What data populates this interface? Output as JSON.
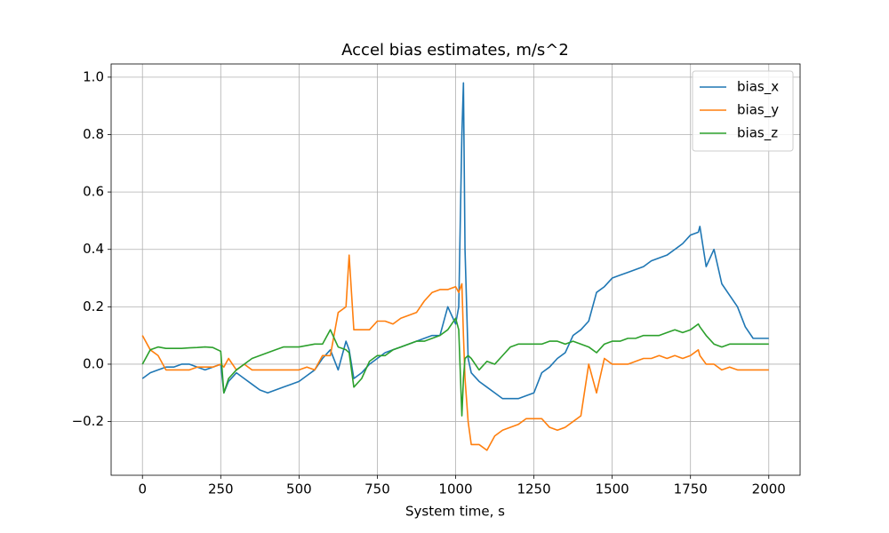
{
  "chart_data": {
    "type": "line",
    "title": "Accel bias estimates, m/s^2",
    "x_label": "System time, s",
    "x": [
      0,
      25,
      50,
      75,
      100,
      125,
      150,
      175,
      200,
      225,
      250,
      260,
      275,
      300,
      325,
      350,
      375,
      400,
      425,
      450,
      475,
      500,
      525,
      550,
      575,
      600,
      625,
      650,
      660,
      675,
      700,
      725,
      750,
      775,
      800,
      825,
      850,
      875,
      900,
      925,
      950,
      975,
      1000,
      1010,
      1020,
      1025,
      1030,
      1040,
      1050,
      1075,
      1100,
      1125,
      1150,
      1175,
      1200,
      1225,
      1250,
      1275,
      1300,
      1325,
      1350,
      1375,
      1400,
      1425,
      1450,
      1475,
      1500,
      1525,
      1550,
      1575,
      1600,
      1625,
      1650,
      1675,
      1700,
      1725,
      1750,
      1775,
      1780,
      1800,
      1825,
      1850,
      1875,
      1900,
      1925,
      1950,
      1975,
      2000
    ],
    "series": [
      {
        "name": "bias_x",
        "color": "#1f77b4",
        "values": [
          -0.05,
          -0.03,
          -0.02,
          -0.01,
          -0.01,
          0.0,
          0.0,
          -0.01,
          -0.02,
          -0.01,
          0.0,
          -0.1,
          -0.06,
          -0.03,
          -0.05,
          -0.07,
          -0.09,
          -0.1,
          -0.09,
          -0.08,
          -0.07,
          -0.06,
          -0.04,
          -0.02,
          0.02,
          0.05,
          -0.02,
          0.08,
          0.05,
          -0.05,
          -0.03,
          0.0,
          0.02,
          0.04,
          0.05,
          0.06,
          0.07,
          0.08,
          0.09,
          0.1,
          0.1,
          0.2,
          0.14,
          0.2,
          0.8,
          0.98,
          0.4,
          0.02,
          -0.03,
          -0.06,
          -0.08,
          -0.1,
          -0.12,
          -0.12,
          -0.12,
          -0.11,
          -0.1,
          -0.03,
          -0.01,
          0.02,
          0.04,
          0.1,
          0.12,
          0.15,
          0.25,
          0.27,
          0.3,
          0.31,
          0.32,
          0.33,
          0.34,
          0.36,
          0.37,
          0.38,
          0.4,
          0.42,
          0.45,
          0.46,
          0.48,
          0.34,
          0.4,
          0.28,
          0.24,
          0.2,
          0.13,
          0.09,
          0.09,
          0.09
        ]
      },
      {
        "name": "bias_y",
        "color": "#ff7f0e",
        "values": [
          0.1,
          0.05,
          0.03,
          -0.02,
          -0.02,
          -0.02,
          -0.02,
          -0.01,
          -0.01,
          -0.01,
          0.0,
          -0.01,
          0.02,
          -0.02,
          0.0,
          -0.02,
          -0.02,
          -0.02,
          -0.02,
          -0.02,
          -0.02,
          -0.02,
          -0.01,
          -0.02,
          0.03,
          0.03,
          0.18,
          0.2,
          0.38,
          0.12,
          0.12,
          0.12,
          0.15,
          0.15,
          0.14,
          0.16,
          0.17,
          0.18,
          0.22,
          0.25,
          0.26,
          0.26,
          0.27,
          0.25,
          0.28,
          0.1,
          -0.05,
          -0.2,
          -0.28,
          -0.28,
          -0.3,
          -0.25,
          -0.23,
          -0.22,
          -0.21,
          -0.19,
          -0.19,
          -0.19,
          -0.22,
          -0.23,
          -0.22,
          -0.2,
          -0.18,
          0.0,
          -0.1,
          0.02,
          0.0,
          0.0,
          0.0,
          0.01,
          0.02,
          0.02,
          0.03,
          0.02,
          0.03,
          0.02,
          0.03,
          0.05,
          0.03,
          0.0,
          0.0,
          -0.02,
          -0.01,
          -0.02,
          -0.02,
          -0.02,
          -0.02,
          -0.02
        ]
      },
      {
        "name": "bias_z",
        "color": "#2ca02c",
        "values": [
          0.0,
          0.05,
          0.06,
          0.055,
          0.055,
          0.055,
          0.057,
          0.058,
          0.06,
          0.058,
          0.045,
          -0.1,
          -0.05,
          -0.02,
          0.0,
          0.02,
          0.03,
          0.04,
          0.05,
          0.06,
          0.06,
          0.06,
          0.065,
          0.07,
          0.07,
          0.12,
          0.06,
          0.05,
          0.04,
          -0.08,
          -0.05,
          0.01,
          0.03,
          0.03,
          0.05,
          0.06,
          0.07,
          0.08,
          0.08,
          0.09,
          0.1,
          0.12,
          0.16,
          0.12,
          -0.18,
          -0.05,
          0.02,
          0.03,
          0.02,
          -0.02,
          0.01,
          0.0,
          0.03,
          0.06,
          0.07,
          0.07,
          0.07,
          0.07,
          0.08,
          0.08,
          0.07,
          0.08,
          0.07,
          0.06,
          0.04,
          0.07,
          0.08,
          0.08,
          0.09,
          0.09,
          0.1,
          0.1,
          0.1,
          0.11,
          0.12,
          0.11,
          0.12,
          0.14,
          0.13,
          0.1,
          0.07,
          0.06,
          0.07,
          0.07,
          0.07,
          0.07,
          0.07,
          0.07
        ]
      }
    ],
    "xlim": [
      -100,
      2100
    ],
    "ylim": [
      -0.387,
      1.046
    ],
    "xticks": [
      0,
      250,
      500,
      750,
      1000,
      1250,
      1500,
      1750,
      2000
    ],
    "yticks": [
      {
        "value": -0.2,
        "label": "−0.2"
      },
      {
        "value": 0,
        "label": "0.0"
      },
      {
        "value": 0.2,
        "label": "0.2"
      },
      {
        "value": 0.4,
        "label": "0.4"
      },
      {
        "value": 0.6,
        "label": "0.6"
      },
      {
        "value": 0.8,
        "label": "0.8"
      },
      {
        "value": 1,
        "label": "1.0"
      }
    ],
    "grid": true,
    "legend": "upper-right"
  }
}
